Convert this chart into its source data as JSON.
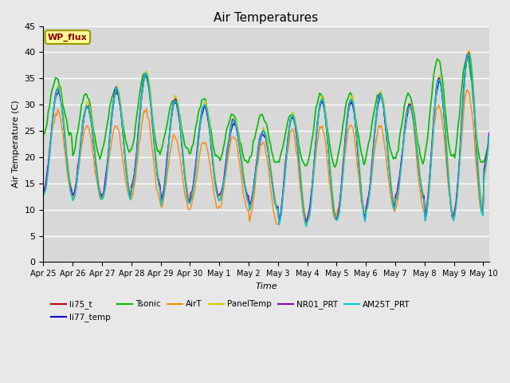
{
  "title": "Air Temperatures",
  "xlabel": "Time",
  "ylabel": "Air Temperature (C)",
  "ylim": [
    0,
    45
  ],
  "yticks": [
    0,
    5,
    10,
    15,
    20,
    25,
    30,
    35,
    40,
    45
  ],
  "date_labels": [
    "Apr 25",
    "Apr 26",
    "Apr 27",
    "Apr 28",
    "Apr 29",
    "Apr 30",
    "May 1",
    "May 2",
    "May 3",
    "May 4",
    "May 5",
    "May 6",
    "May 7",
    "May 8",
    "May 9",
    "May 10"
  ],
  "legend_label": "WP_flux",
  "series_order": [
    "li75_t",
    "li77_temp",
    "Tsonic",
    "AirT",
    "PanelTemp",
    "NR01_PRT",
    "AM25T_PRT"
  ],
  "series": {
    "li75_t": {
      "color": "#cc0000",
      "lw": 1.0
    },
    "li77_temp": {
      "color": "#0000cc",
      "lw": 1.0
    },
    "Tsonic": {
      "color": "#00bb00",
      "lw": 1.2
    },
    "AirT": {
      "color": "#ff8800",
      "lw": 1.0
    },
    "PanelTemp": {
      "color": "#cccc00",
      "lw": 1.0
    },
    "NR01_PRT": {
      "color": "#8800bb",
      "lw": 1.0
    },
    "AM25T_PRT": {
      "color": "#00cccc",
      "lw": 1.2
    }
  },
  "axes_facecolor": "#d8d8d8",
  "grid_color": "#ffffff",
  "fig_facecolor": "#e8e8e8"
}
